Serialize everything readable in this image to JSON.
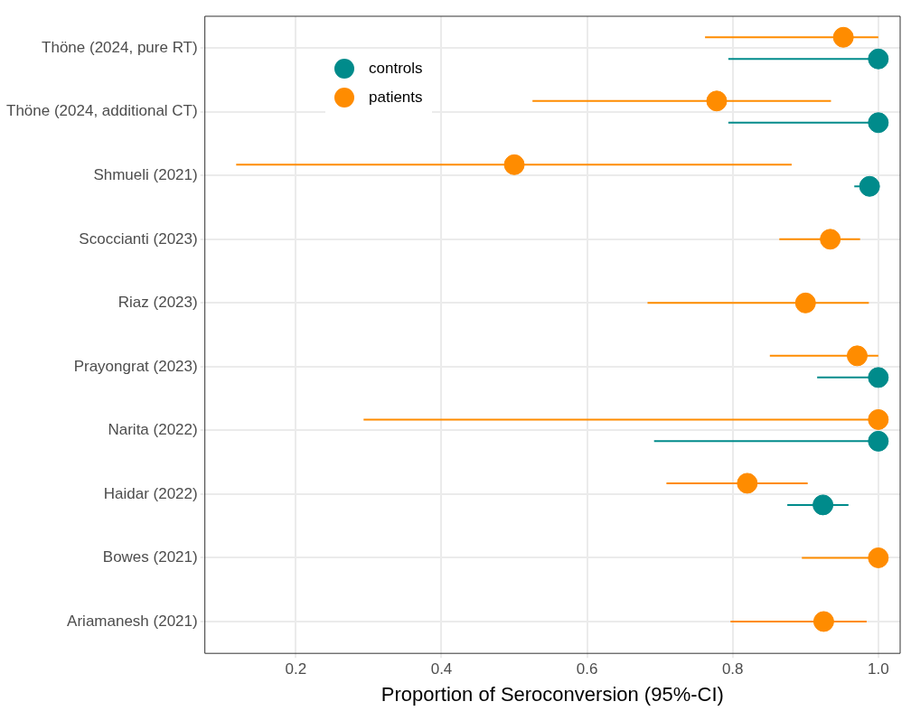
{
  "chart_data": {
    "type": "scatter",
    "orientation": "horizontal",
    "xlabel": "Proportion of Seroconversion (95%-CI)",
    "categories": [
      "Thöne (2024, pure RT)",
      "Thöne (2024, additional CT)",
      "Shmueli (2021)",
      "Scoccianti (2023)",
      "Riaz (2023)",
      "Prayongrat (2023)",
      "Narita (2022)",
      "Haidar (2022)",
      "Bowes (2021)",
      "Ariamanesh (2021)"
    ],
    "series": [
      {
        "name": "controls",
        "color": "#008b8b",
        "values": [
          1.0,
          1.0,
          0.988,
          null,
          null,
          1.0,
          1.0,
          0.924,
          null,
          null
        ],
        "errors": [
          [
            0.794,
            1.0
          ],
          [
            0.794,
            1.0
          ],
          [
            0.967,
            1.0
          ],
          null,
          null,
          [
            0.916,
            1.0
          ],
          [
            0.692,
            1.0
          ],
          [
            0.875,
            0.959
          ],
          null,
          null
        ]
      },
      {
        "name": "patients",
        "color": "#ff8c00",
        "values": [
          0.952,
          0.778,
          0.5,
          0.934,
          0.9,
          0.971,
          1.0,
          0.82,
          1.0,
          0.925
        ],
        "errors": [
          [
            0.762,
            1.0
          ],
          [
            0.525,
            0.935
          ],
          [
            0.118,
            0.881
          ],
          [
            0.864,
            0.975
          ],
          [
            0.683,
            0.987
          ],
          [
            0.851,
            1.0
          ],
          [
            0.293,
            1.0
          ],
          [
            0.709,
            0.903
          ],
          [
            0.895,
            1.0
          ],
          [
            0.797,
            0.984
          ]
        ]
      }
    ],
    "xlim": [
      0.075,
      1.03
    ],
    "xticks": [
      {
        "value": 0.2,
        "label": "0.2"
      },
      {
        "value": 0.4,
        "label": "0.4"
      },
      {
        "value": 0.6,
        "label": "0.6"
      },
      {
        "value": 0.8,
        "label": "0.8"
      },
      {
        "value": 1.0,
        "label": "1.0"
      }
    ],
    "grid": true,
    "legend": "top left",
    "marker": "circle"
  }
}
